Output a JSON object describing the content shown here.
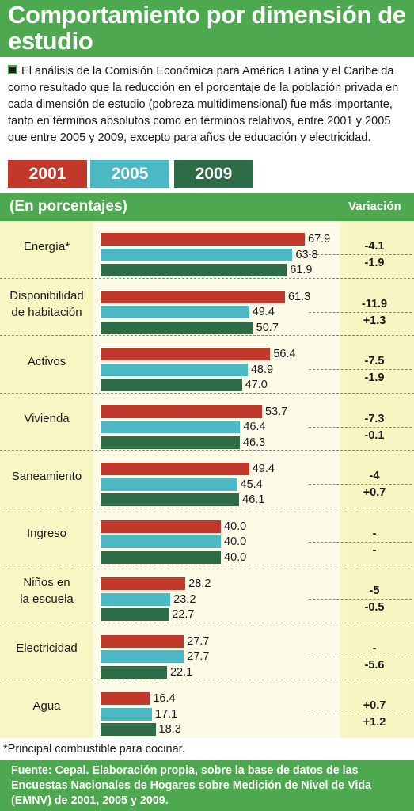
{
  "title": "Comportamiento por dimensión de estudio",
  "intro": "El análisis de la Comisión Económica para América Latina y el Caribe da como resultado que la reducción en el porcentaje de la población privada en cada dimensión de estudio (pobreza multidimensional) fue más importante, tanto en términos absolutos como en términos relativos, entre 2001 y 2005 que entre 2005 y 2009, excepto para años de educación y electricidad.",
  "legend": [
    "2001",
    "2005",
    "2009"
  ],
  "colors": {
    "2001": "#c0392b",
    "2005": "#4cb8c3",
    "2009": "#2e6b47",
    "accent": "#4ea84f"
  },
  "unit_label": "(En porcentajes)",
  "variation_header": "Variación",
  "footnote": "*Principal combustible para cocinar.",
  "source": "Fuente: Cepal. Elaboración propia, sobre la base de datos de las Encuestas Nacionales de Hogares sobre Medición de Nivel de Vida (EMNV) de 2001, 2005 y 2009.",
  "chart_data": {
    "type": "bar",
    "orientation": "horizontal",
    "series_names": [
      "2001",
      "2005",
      "2009"
    ],
    "categories": [
      {
        "lines": [
          "Energía*"
        ],
        "values": [
          67.9,
          63.8,
          61.9
        ],
        "labels": [
          "67.9",
          "63.8",
          "61.9"
        ],
        "variation": [
          "-4.1",
          "-1.9"
        ]
      },
      {
        "lines": [
          "Disponibilidad",
          "de habitación"
        ],
        "values": [
          61.3,
          49.4,
          50.7
        ],
        "labels": [
          "61.3",
          "49.4",
          "50.7"
        ],
        "variation": [
          "-11.9",
          "+1.3"
        ]
      },
      {
        "lines": [
          "Activos"
        ],
        "values": [
          56.4,
          48.9,
          47.0
        ],
        "labels": [
          "56.4",
          "48.9",
          "47.0"
        ],
        "variation": [
          "-7.5",
          "-1.9"
        ]
      },
      {
        "lines": [
          "Vivienda"
        ],
        "values": [
          53.7,
          46.4,
          46.3
        ],
        "labels": [
          "53.7",
          "46.4",
          "46.3"
        ],
        "variation": [
          "-7.3",
          "-0.1"
        ]
      },
      {
        "lines": [
          "Saneamiento"
        ],
        "values": [
          49.4,
          45.4,
          46.1
        ],
        "labels": [
          "49.4",
          "45.4",
          "46.1"
        ],
        "variation": [
          "-4",
          "+0.7"
        ]
      },
      {
        "lines": [
          "Ingreso"
        ],
        "values": [
          40.0,
          40.0,
          40.0
        ],
        "labels": [
          "40.0",
          "40.0",
          "40.0"
        ],
        "variation": [
          "-",
          "-"
        ]
      },
      {
        "lines": [
          "Niños en",
          "la escuela"
        ],
        "values": [
          28.2,
          23.2,
          22.7
        ],
        "labels": [
          "28.2",
          "23.2",
          "22.7"
        ],
        "variation": [
          "-5",
          "-0.5"
        ]
      },
      {
        "lines": [
          "Electricidad"
        ],
        "values": [
          27.7,
          27.7,
          22.1
        ],
        "labels": [
          "27.7",
          "27.7",
          "22.1"
        ],
        "variation": [
          "-",
          "-5.6"
        ]
      },
      {
        "lines": [
          "Agua"
        ],
        "values": [
          16.4,
          17.1,
          18.3
        ],
        "labels": [
          "16.4",
          "17.1",
          "18.3"
        ],
        "variation": [
          "+0.7",
          "+1.2"
        ]
      }
    ]
  }
}
